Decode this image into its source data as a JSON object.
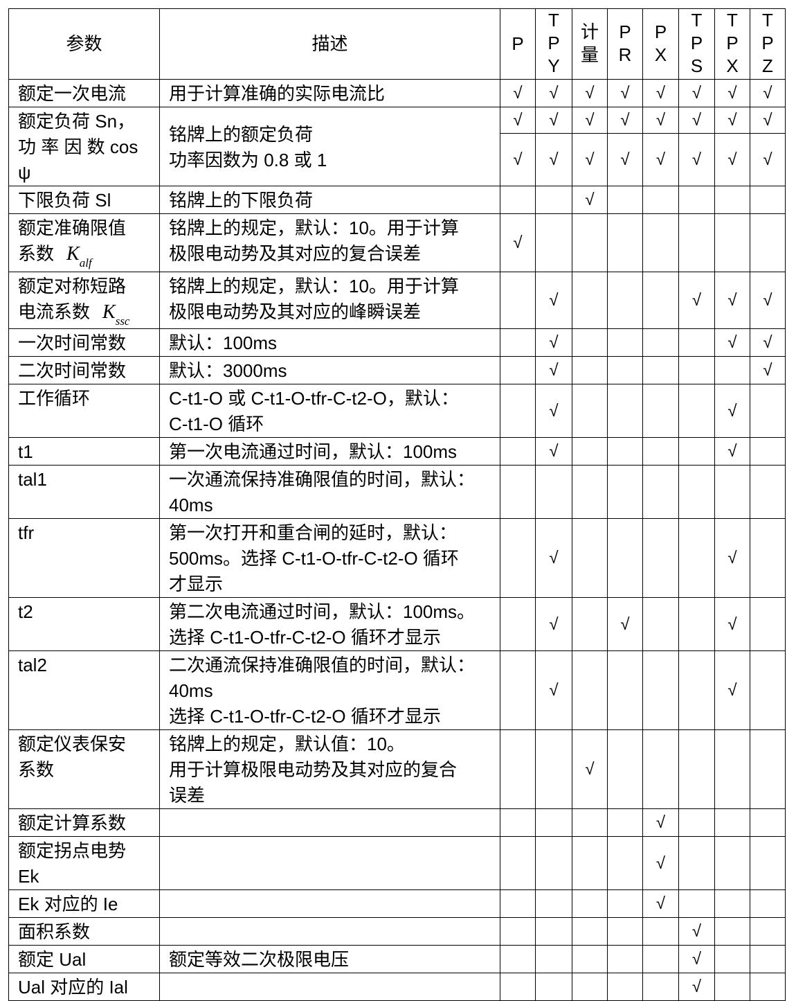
{
  "header": {
    "param": "参数",
    "desc": "描述",
    "columns": [
      "P",
      "TPY",
      "计量",
      "PR",
      "PX",
      "TPS",
      "TPX",
      "TPZ"
    ]
  },
  "check_glyph": "√",
  "rows": [
    {
      "param": "额定一次电流",
      "desc": "用于计算准确的实际电流比",
      "checks": [
        [
          "P",
          "TPY",
          "计量",
          "PR",
          "PX",
          "TPS",
          "TPX",
          "TPZ"
        ]
      ]
    },
    {
      "param": "额定负荷 Sn，\n功 率 因 数  cos\nψ",
      "desc": "铭牌上的额定负荷\n功率因数为 0.8 或 1",
      "checks": [
        [
          "P",
          "TPY",
          "计量",
          "PR",
          "PX",
          "TPS",
          "TPX",
          "TPZ"
        ],
        [
          "P",
          "TPY",
          "计量",
          "PR",
          "PX",
          "TPS",
          "TPX",
          "TPZ"
        ]
      ]
    },
    {
      "param": "下限负荷 Sl",
      "desc": "铭牌上的下限负荷",
      "checks": [
        [
          "计量"
        ]
      ]
    },
    {
      "param": "额定准确限值\n系数",
      "param_sym": "K",
      "param_sub": "alf",
      "desc": "铭牌上的规定，默认：10。用于计算\n极限电动势及其对应的复合误差",
      "checks": [
        [
          "P"
        ]
      ]
    },
    {
      "param": "额定对称短路\n电流系数",
      "param_sym": "K",
      "param_sub": "ssc",
      "desc": "铭牌上的规定，默认：10。用于计算\n极限电动势及其对应的峰瞬误差",
      "checks": [
        [
          "TPY",
          "TPS",
          "TPX",
          "TPZ"
        ]
      ]
    },
    {
      "param": "一次时间常数",
      "desc": "默认：100ms",
      "checks": [
        [
          "TPY",
          "TPX",
          "TPZ"
        ]
      ]
    },
    {
      "param": "二次时间常数",
      "desc": "默认：3000ms",
      "checks": [
        [
          "TPY",
          "TPZ"
        ]
      ]
    },
    {
      "param": "工作循环",
      "desc": "C-t1-O 或 C-t1-O-tfr-C-t2-O，默认：\nC-t1-O 循环",
      "checks": [
        [
          "TPY",
          "TPX"
        ]
      ]
    },
    {
      "param": "t1",
      "desc": "第一次电流通过时间，默认：100ms",
      "checks": [
        [
          "TPY",
          "TPX"
        ]
      ]
    },
    {
      "param": "tal1",
      "desc": "一次通流保持准确限值的时间，默认：\n40ms",
      "checks": [
        []
      ]
    },
    {
      "param": "tfr",
      "desc": "第一次打开和重合闸的延时，默认：\n500ms。选择 C-t1-O-tfr-C-t2-O 循环\n才显示",
      "checks": [
        [
          "TPY",
          "TPX"
        ]
      ]
    },
    {
      "param": "t2",
      "desc": "第二次电流通过时间，默认：100ms。\n选择 C-t1-O-tfr-C-t2-O 循环才显示",
      "checks": [
        [
          "TPY",
          "PR",
          "TPX"
        ]
      ]
    },
    {
      "param": "tal2",
      "desc": "二次通流保持准确限值的时间，默认：\n40ms\n选择 C-t1-O-tfr-C-t2-O 循环才显示",
      "checks": [
        [
          "TPY",
          "TPX"
        ]
      ]
    },
    {
      "param": "额定仪表保安\n系数",
      "desc": "铭牌上的规定，默认值：10。\n用于计算极限电动势及其对应的复合\n误差",
      "checks": [
        [
          "计量"
        ]
      ]
    },
    {
      "param": "额定计算系数",
      "desc": "",
      "checks": [
        [
          "PX"
        ]
      ]
    },
    {
      "param": "额定拐点电势\nEk",
      "desc": "",
      "checks": [
        [
          "PX"
        ]
      ]
    },
    {
      "param": "Ek 对应的 Ie",
      "desc": "",
      "checks": [
        [
          "PX"
        ]
      ]
    },
    {
      "param": "面积系数",
      "desc": "",
      "checks": [
        [
          "TPS"
        ]
      ]
    },
    {
      "param": "额定 Ual",
      "desc": "额定等效二次极限电压",
      "checks": [
        [
          "TPS"
        ]
      ]
    },
    {
      "param": "Ual 对应的 Ial",
      "desc": "",
      "checks": [
        [
          "TPS"
        ]
      ]
    }
  ]
}
